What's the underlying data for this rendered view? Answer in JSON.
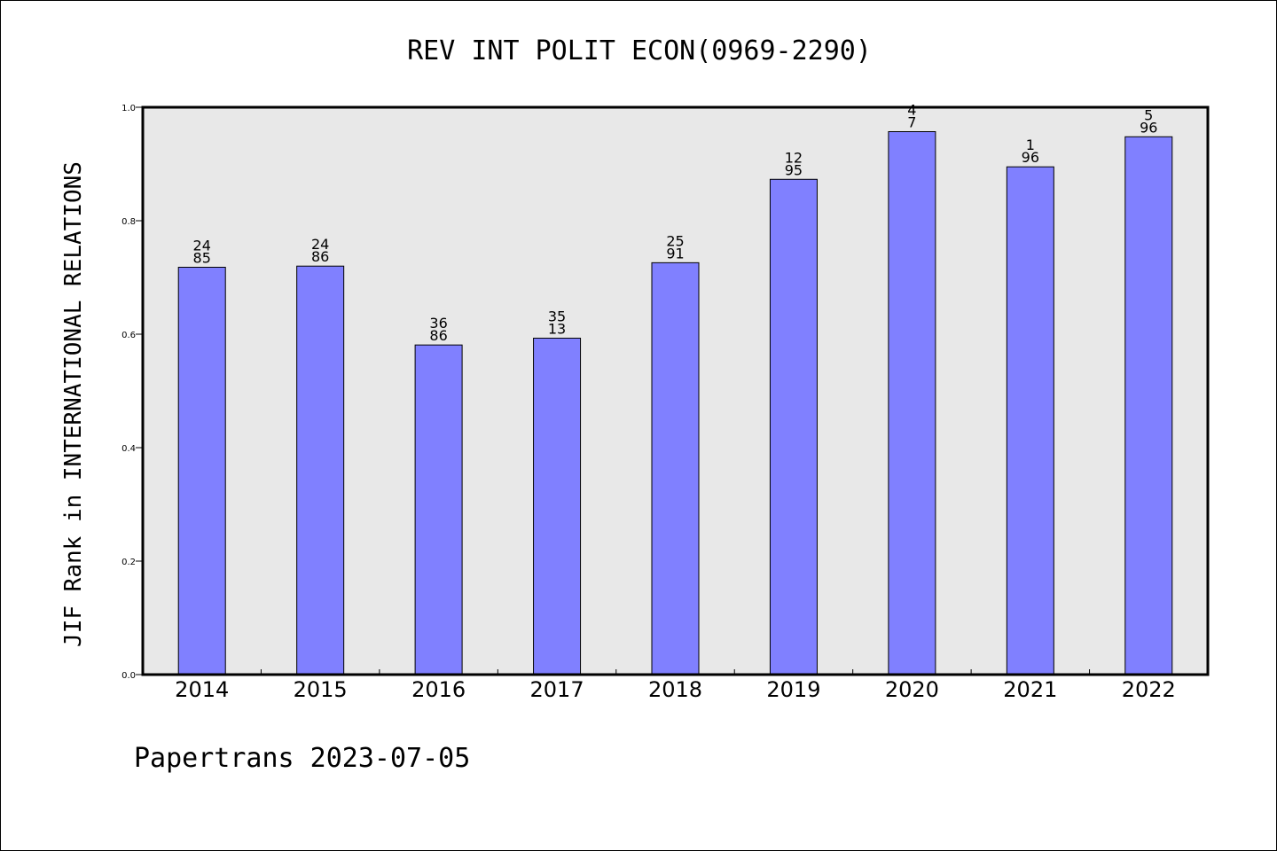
{
  "chart_data": {
    "type": "bar",
    "title": "REV INT POLIT ECON(0969-2290)",
    "xlabel": "",
    "ylabel": "JIF Rank in INTERNATIONAL RELATIONS",
    "ylim": [
      0.0,
      1.0
    ],
    "yticks": [
      "0.0",
      "0.2",
      "0.4",
      "0.6",
      "0.8",
      "1.0"
    ],
    "grid": false,
    "categories": [
      "2014",
      "2015",
      "2016",
      "2017",
      "2018",
      "2019",
      "2020",
      "2021",
      "2022"
    ],
    "values": [
      0.718,
      0.72,
      0.581,
      0.593,
      0.726,
      0.873,
      0.957,
      0.895,
      0.948
    ],
    "bar_labels": [
      [
        "24",
        "85"
      ],
      [
        "24",
        "86"
      ],
      [
        "36",
        "86"
      ],
      [
        "35",
        "13"
      ],
      [
        "25",
        "91"
      ],
      [
        "12",
        "95"
      ],
      [
        "4",
        "7"
      ],
      [
        "1",
        "96"
      ],
      [
        "5",
        "96"
      ]
    ],
    "colors": {
      "bar": "#8080ff",
      "plot_bg": "#e8e8e8"
    }
  },
  "footer": "Papertrans 2023-07-05"
}
